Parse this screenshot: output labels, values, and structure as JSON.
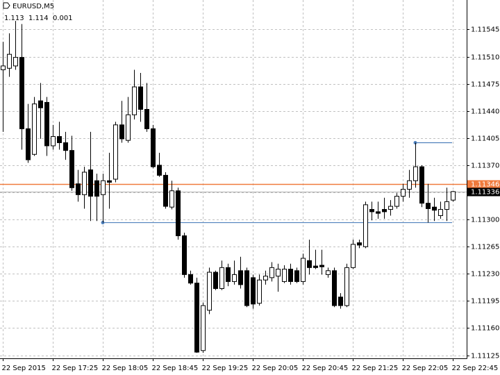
{
  "chart_data": {
    "type": "candlestick",
    "title": "EURUSD,M5",
    "subtitle": "1.113  1.114  0.001",
    "categories": [
      "22 Sep 2015",
      null,
      null,
      null,
      null,
      null,
      null,
      null,
      "22 Sep 17:25",
      null,
      null,
      null,
      null,
      null,
      null,
      null,
      "22 Sep 18:05",
      null,
      null,
      null,
      null,
      null,
      null,
      null,
      "22 Sep 18:45",
      null,
      null,
      null,
      null,
      null,
      null,
      null,
      "22 Sep 19:25",
      null,
      null,
      null,
      null,
      null,
      null,
      null,
      "22 Sep 20:05",
      null,
      null,
      null,
      null,
      null,
      null,
      null,
      "22 Sep 20:45",
      null,
      null,
      null,
      null,
      null,
      null,
      null,
      "22 Sep 21:25",
      null,
      null,
      null,
      null,
      null,
      null,
      null,
      "22 Sep 22:05",
      null,
      null,
      null,
      null,
      null,
      null,
      null,
      "22 Sep 22:45"
    ],
    "open": [
      1.11493,
      1.11495,
      1.11498,
      1.11509,
      1.11417,
      1.11384,
      1.11453,
      1.11451,
      1.11395,
      1.11407,
      1.11399,
      1.11389,
      1.11346,
      1.11332,
      1.11364,
      1.1135,
      1.11332,
      1.1135,
      1.11352,
      1.11422,
      1.11402,
      1.11435,
      1.11471,
      1.11442,
      1.11417,
      1.1137,
      1.11357,
      1.11316,
      1.11337,
      1.11279,
      1.11229,
      1.11218,
      1.11131,
      1.11183,
      1.11232,
      1.11211,
      1.11238,
      1.1122,
      1.11234,
      1.11234,
      1.11225,
      1.11192,
      1.11222,
      1.11225,
      1.11227,
      1.1122,
      1.11236,
      1.11234,
      1.1122,
      1.11247,
      1.1124,
      1.11241,
      1.11229,
      1.11234,
      1.112,
      1.11189,
      1.11238,
      1.1127,
      1.11265,
      1.11313,
      1.1131,
      1.11313,
      1.11313,
      1.11317,
      1.1133,
      1.11339,
      1.1135,
      1.11368,
      1.11321,
      1.11316,
      1.11305,
      1.11313,
      1.11325
    ],
    "high": [
      1.11529,
      1.1154,
      1.11556,
      1.11552,
      1.11449,
      1.11458,
      1.11476,
      1.11458,
      1.11422,
      1.11426,
      1.11413,
      1.11408,
      1.11364,
      1.11368,
      1.11413,
      1.11359,
      1.11359,
      1.11386,
      1.11426,
      1.11453,
      1.11458,
      1.11493,
      1.11489,
      1.11476,
      1.11422,
      1.11386,
      1.11361,
      1.1135,
      1.11341,
      1.11283,
      1.11234,
      1.11225,
      1.11193,
      1.11238,
      1.11234,
      1.11247,
      1.11243,
      1.11247,
      1.11252,
      1.11238,
      1.11229,
      1.11229,
      1.11234,
      1.11245,
      1.11243,
      1.11241,
      1.11243,
      1.11238,
      1.11256,
      1.11274,
      1.11261,
      1.11261,
      1.11238,
      1.11238,
      1.11205,
      1.11243,
      1.11274,
      1.11274,
      1.11323,
      1.11323,
      1.11323,
      1.11328,
      1.11325,
      1.11334,
      1.11346,
      1.11364,
      1.11399,
      1.1137,
      1.11346,
      1.11328,
      1.11323,
      1.11341,
      1.11337
    ],
    "low": [
      1.11413,
      1.11484,
      1.11493,
      1.1139,
      1.11373,
      1.11382,
      1.11404,
      1.11382,
      1.1139,
      1.1139,
      1.11377,
      1.11337,
      1.11323,
      1.11314,
      1.11298,
      1.11298,
      1.11296,
      1.11314,
      1.11348,
      1.11399,
      1.11399,
      1.11429,
      1.11426,
      1.11413,
      1.11366,
      1.11355,
      1.11314,
      1.11313,
      1.11274,
      1.11225,
      1.11216,
      1.11128,
      1.11128,
      1.11178,
      1.11209,
      1.11209,
      1.11214,
      1.11216,
      1.11211,
      1.11187,
      1.11185,
      1.11189,
      1.11216,
      1.1122,
      1.11207,
      1.11218,
      1.11216,
      1.11218,
      1.11216,
      1.11229,
      1.11236,
      1.11229,
      1.11225,
      1.11187,
      1.11185,
      1.11187,
      1.11236,
      1.11263,
      1.11263,
      1.11299,
      1.11301,
      1.11301,
      1.11305,
      1.11314,
      1.11323,
      1.11328,
      1.11341,
      1.11316,
      1.11296,
      1.11298,
      1.11301,
      1.11298,
      1.11323
    ],
    "close": [
      1.11498,
      1.11513,
      1.11509,
      1.11417,
      1.11377,
      1.11449,
      1.11444,
      1.11395,
      1.11407,
      1.11399,
      1.11389,
      1.11341,
      1.11332,
      1.11361,
      1.1133,
      1.1133,
      1.1135,
      1.11348,
      1.11422,
      1.11404,
      1.11435,
      1.11471,
      1.11442,
      1.11417,
      1.11368,
      1.11357,
      1.11317,
      1.11337,
      1.11279,
      1.11229,
      1.11218,
      1.11129,
      1.11189,
      1.11232,
      1.11211,
      1.11238,
      1.1122,
      1.11229,
      1.11216,
      1.11189,
      1.11191,
      1.11222,
      1.11227,
      1.11238,
      1.11236,
      1.11236,
      1.1122,
      1.1122,
      1.1125,
      1.11238,
      1.11238,
      1.11239,
      1.11234,
      1.11189,
      1.11189,
      1.11238,
      1.11268,
      1.11267,
      1.11319,
      1.1131,
      1.11308,
      1.1131,
      1.11317,
      1.1133,
      1.11339,
      1.1135,
      1.11368,
      1.11321,
      1.11314,
      1.11312,
      1.11313,
      1.11323,
      1.11336
    ],
    "up_color": "#ffffff",
    "down_color": "#000000",
    "ylim": [
      1.11121,
      1.11583
    ],
    "yticks": [
      1.11125,
      {
        "value": 1.1116,
        "label": "1.11160"
      },
      1.11195,
      {
        "value": 1.1123,
        "label": "1.11230"
      },
      1.11265,
      {
        "value": 1.113,
        "label": "1.11300"
      },
      1.11335,
      {
        "value": 1.1137,
        "label": "1.11370"
      },
      1.11405,
      {
        "value": 1.1144,
        "label": "1.11440"
      },
      1.11475,
      {
        "value": 1.1151,
        "label": "1.11510"
      },
      1.11545
    ],
    "grid": true,
    "price_lines": [
      {
        "value": 1.11346,
        "label": "1.11346",
        "color": "#f07a3c"
      },
      {
        "value": 1.11336,
        "label": "1.11336",
        "color": "#b0b0b0"
      }
    ],
    "trend_lines": [
      {
        "x_start": 16,
        "value": 1.11296,
        "color": "#4f81bd"
      },
      {
        "x_start": 66,
        "value": 1.11399,
        "color": "#4f81bd"
      }
    ]
  }
}
